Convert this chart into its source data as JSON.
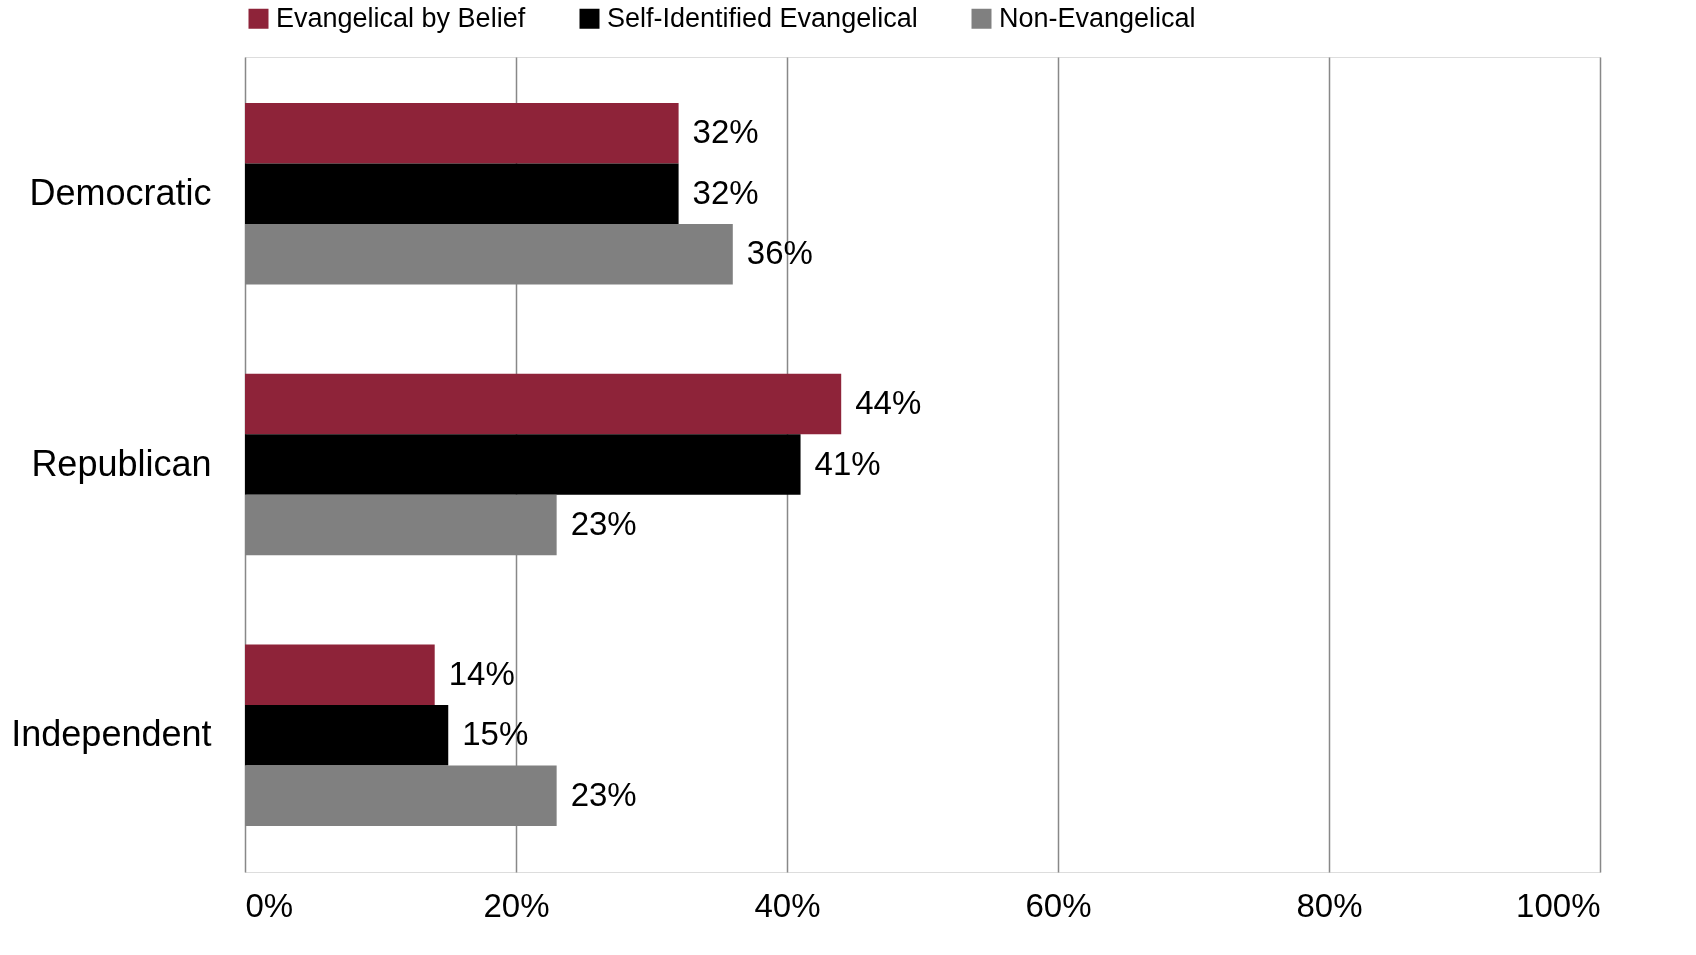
{
  "chart_data": {
    "type": "bar",
    "orientation": "horizontal",
    "categories": [
      "Democratic",
      "Republican",
      "Independent"
    ],
    "series": [
      {
        "name": "Evangelical by Belief",
        "color": "#8e2339",
        "values": [
          32,
          44,
          14
        ],
        "value_labels": [
          "32%",
          "44%",
          "14%"
        ]
      },
      {
        "name": "Self-Identified Evangelical",
        "color": "#000000",
        "values": [
          32,
          41,
          15
        ],
        "value_labels": [
          "32%",
          "41%",
          "15%"
        ]
      },
      {
        "name": "Non-Evangelical",
        "color": "#808080",
        "values": [
          36,
          23,
          23
        ],
        "value_labels": [
          "36%",
          "23%",
          "23%"
        ]
      }
    ],
    "xlim": [
      0,
      100
    ],
    "xticks": [
      {
        "value": 0,
        "label": "0%"
      },
      {
        "value": 20,
        "label": "20%"
      },
      {
        "value": 40,
        "label": "40%"
      },
      {
        "value": 60,
        "label": "60%"
      },
      {
        "value": 80,
        "label": "80%"
      },
      {
        "value": 100,
        "label": "100%"
      }
    ],
    "grid": "x",
    "legend": "top"
  }
}
